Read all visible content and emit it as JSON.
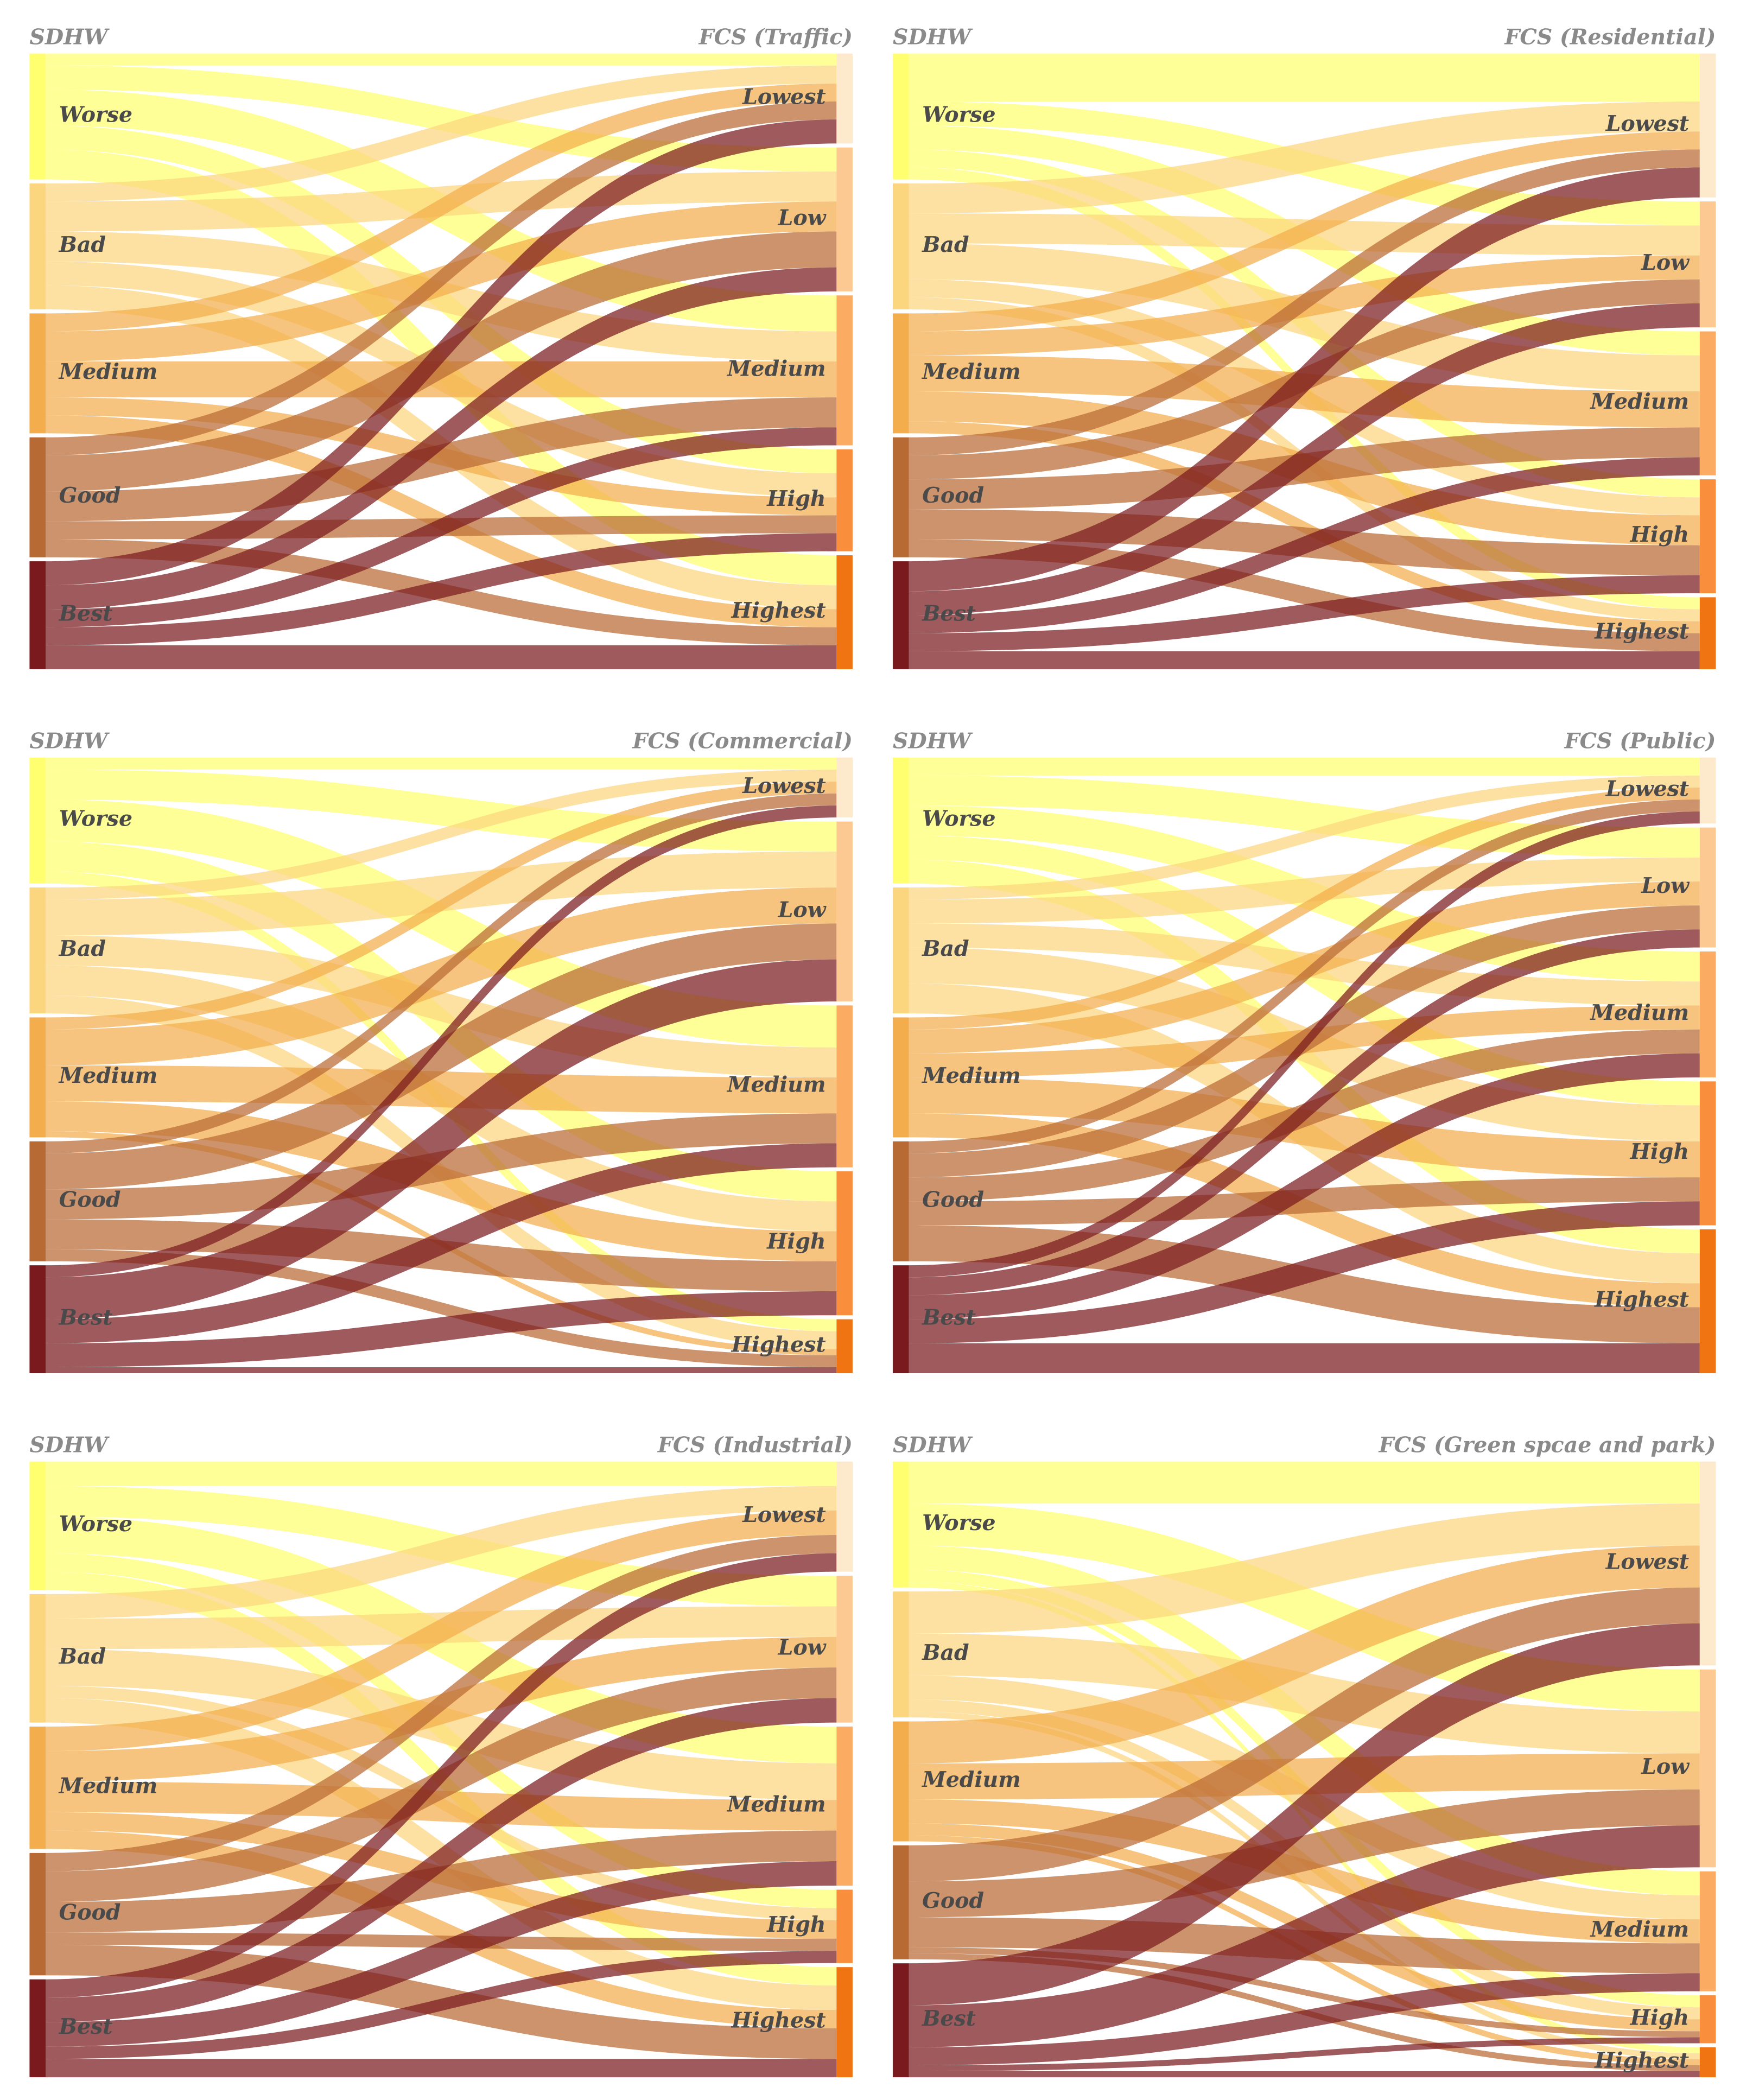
{
  "chart_data": [
    {
      "type": "sankey",
      "source_title": "SDHW",
      "title": "FCS (Traffic)",
      "sources": [
        {
          "name": "Worse",
          "color": "#ffff70"
        },
        {
          "name": "Bad",
          "color": "#fcd67e"
        },
        {
          "name": "Medium",
          "color": "#f3ad4c"
        },
        {
          "name": "Good",
          "color": "#b86a34"
        },
        {
          "name": "Best",
          "color": "#7a1a1e"
        }
      ],
      "targets": [
        {
          "name": "Lowest",
          "color": "#fde9cc"
        },
        {
          "name": "Low",
          "color": "#fcc993"
        },
        {
          "name": "Medium",
          "color": "#fbac62"
        },
        {
          "name": "High",
          "color": "#f98e3c"
        },
        {
          "name": "Highest",
          "color": "#f07412"
        }
      ],
      "flows": [
        [
          2,
          4,
          6,
          4,
          5
        ],
        [
          3,
          5,
          5,
          4,
          4
        ],
        [
          3,
          5,
          6,
          3,
          3
        ],
        [
          3,
          6,
          5,
          3,
          3
        ],
        [
          4,
          4,
          3,
          3,
          4
        ]
      ]
    },
    {
      "type": "sankey",
      "source_title": "SDHW",
      "title": "FCS (Residential)",
      "sources": [
        {
          "name": "Worse",
          "color": "#ffff70"
        },
        {
          "name": "Bad",
          "color": "#fcd67e"
        },
        {
          "name": "Medium",
          "color": "#f3ad4c"
        },
        {
          "name": "Good",
          "color": "#b86a34"
        },
        {
          "name": "Best",
          "color": "#7a1a1e"
        }
      ],
      "targets": [
        {
          "name": "Lowest",
          "color": "#fde9cc"
        },
        {
          "name": "Low",
          "color": "#fcc993"
        },
        {
          "name": "Medium",
          "color": "#fbac62"
        },
        {
          "name": "High",
          "color": "#f98e3c"
        },
        {
          "name": "Highest",
          "color": "#f07412"
        }
      ],
      "flows": [
        [
          8,
          4,
          4,
          3,
          2
        ],
        [
          5,
          5,
          6,
          3,
          2
        ],
        [
          3,
          4,
          6,
          5,
          2
        ],
        [
          3,
          4,
          5,
          5,
          3
        ],
        [
          5,
          4,
          3,
          3,
          3
        ]
      ]
    },
    {
      "type": "sankey",
      "source_title": "SDHW",
      "title": "FCS (Commercial)",
      "sources": [
        {
          "name": "Worse",
          "color": "#ffff70"
        },
        {
          "name": "Bad",
          "color": "#fcd67e"
        },
        {
          "name": "Medium",
          "color": "#f3ad4c"
        },
        {
          "name": "Good",
          "color": "#b86a34"
        },
        {
          "name": "Best",
          "color": "#7a1a1e"
        }
      ],
      "targets": [
        {
          "name": "Lowest",
          "color": "#fde9cc"
        },
        {
          "name": "Low",
          "color": "#fcc993"
        },
        {
          "name": "Medium",
          "color": "#fbac62"
        },
        {
          "name": "High",
          "color": "#f98e3c"
        },
        {
          "name": "Highest",
          "color": "#f07412"
        }
      ],
      "flows": [
        [
          2,
          5,
          7,
          5,
          2
        ],
        [
          2,
          6,
          5,
          5,
          3
        ],
        [
          2,
          6,
          6,
          5,
          1
        ],
        [
          2,
          6,
          5,
          5,
          2
        ],
        [
          2,
          7,
          4,
          4,
          1
        ]
      ]
    },
    {
      "type": "sankey",
      "source_title": "SDHW",
      "title": "FCS (Public)",
      "sources": [
        {
          "name": "Worse",
          "color": "#ffff70"
        },
        {
          "name": "Bad",
          "color": "#fcd67e"
        },
        {
          "name": "Medium",
          "color": "#f3ad4c"
        },
        {
          "name": "Good",
          "color": "#b86a34"
        },
        {
          "name": "Best",
          "color": "#7a1a1e"
        }
      ],
      "targets": [
        {
          "name": "Lowest",
          "color": "#fde9cc"
        },
        {
          "name": "Low",
          "color": "#fcc993"
        },
        {
          "name": "Medium",
          "color": "#fbac62"
        },
        {
          "name": "High",
          "color": "#f98e3c"
        },
        {
          "name": "Highest",
          "color": "#f07412"
        }
      ],
      "flows": [
        [
          3,
          5,
          5,
          4,
          4
        ],
        [
          2,
          4,
          4,
          6,
          5
        ],
        [
          2,
          4,
          4,
          6,
          4
        ],
        [
          2,
          4,
          4,
          4,
          6
        ],
        [
          2,
          3,
          4,
          4,
          5
        ]
      ]
    },
    {
      "type": "sankey",
      "source_title": "SDHW",
      "title": "FCS (Industrial)",
      "sources": [
        {
          "name": "Worse",
          "color": "#ffff70"
        },
        {
          "name": "Bad",
          "color": "#fcd67e"
        },
        {
          "name": "Medium",
          "color": "#f3ad4c"
        },
        {
          "name": "Good",
          "color": "#b86a34"
        },
        {
          "name": "Best",
          "color": "#7a1a1e"
        }
      ],
      "targets": [
        {
          "name": "Lowest",
          "color": "#fde9cc"
        },
        {
          "name": "Low",
          "color": "#fcc993"
        },
        {
          "name": "Medium",
          "color": "#fbac62"
        },
        {
          "name": "High",
          "color": "#f98e3c"
        },
        {
          "name": "Highest",
          "color": "#f07412"
        }
      ],
      "flows": [
        [
          4,
          5,
          6,
          3,
          3
        ],
        [
          4,
          5,
          6,
          2,
          4
        ],
        [
          4,
          5,
          5,
          3,
          3
        ],
        [
          3,
          5,
          5,
          2,
          5
        ],
        [
          3,
          4,
          4,
          2,
          3
        ]
      ]
    },
    {
      "type": "sankey",
      "source_title": "SDHW",
      "title": "FCS (Green spcae and park)",
      "sources": [
        {
          "name": "Worse",
          "color": "#ffff70"
        },
        {
          "name": "Bad",
          "color": "#fcd67e"
        },
        {
          "name": "Medium",
          "color": "#f3ad4c"
        },
        {
          "name": "Good",
          "color": "#b86a34"
        },
        {
          "name": "Best",
          "color": "#7a1a1e"
        }
      ],
      "targets": [
        {
          "name": "Lowest",
          "color": "#fde9cc"
        },
        {
          "name": "Low",
          "color": "#fcc993"
        },
        {
          "name": "Medium",
          "color": "#fbac62"
        },
        {
          "name": "High",
          "color": "#f98e3c"
        },
        {
          "name": "Highest",
          "color": "#f07412"
        }
      ],
      "flows": [
        [
          7,
          7,
          4,
          2,
          1
        ],
        [
          7,
          7,
          4,
          2,
          1
        ],
        [
          7,
          6,
          4,
          2,
          1
        ],
        [
          6,
          6,
          5,
          1,
          1
        ],
        [
          7,
          7,
          3,
          1,
          1
        ]
      ]
    }
  ]
}
